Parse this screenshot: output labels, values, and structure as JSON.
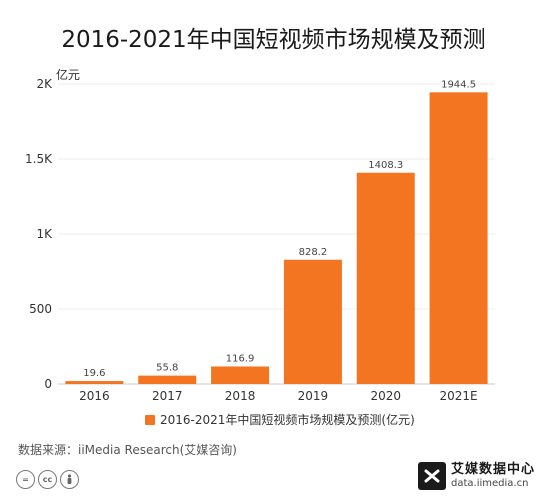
{
  "header": {
    "title": "2016-2021年中国短视频市场规模及预测"
  },
  "axis": {
    "unit": "亿元"
  },
  "legend": {
    "label": "2016-2021年中国短视频市场规模及预测(亿元)"
  },
  "footer": {
    "source": "数据来源：iiMedia Research(艾媒咨询)",
    "brand_name": "艾媒数据中心",
    "brand_url": "data.iimedia.cn"
  },
  "colors": {
    "bar": "#f47521",
    "axis": "#cccccc",
    "grid": "#eeeeee"
  },
  "chart_data": {
    "type": "bar",
    "title": "2016-2021年中国短视频市场规模及预测",
    "ylabel": "亿元",
    "categories": [
      "2016",
      "2017",
      "2018",
      "2019",
      "2020",
      "2021E"
    ],
    "series": [
      {
        "name": "2016-2021年中国短视频市场规模及预测(亿元)",
        "values": [
          19.6,
          55.8,
          116.9,
          828.2,
          1408.3,
          1944.5
        ]
      }
    ],
    "data_labels": [
      "19.6",
      "55.8",
      "116.9",
      "828.2",
      "1408.3",
      "1944.5"
    ],
    "ylim": [
      0,
      2000
    ],
    "yticks": [
      0,
      500,
      1000,
      1500,
      2000
    ],
    "ytick_labels": [
      "0",
      "500",
      "1K",
      "1.5K",
      "2K"
    ],
    "grid": true,
    "legend_position": "bottom"
  }
}
